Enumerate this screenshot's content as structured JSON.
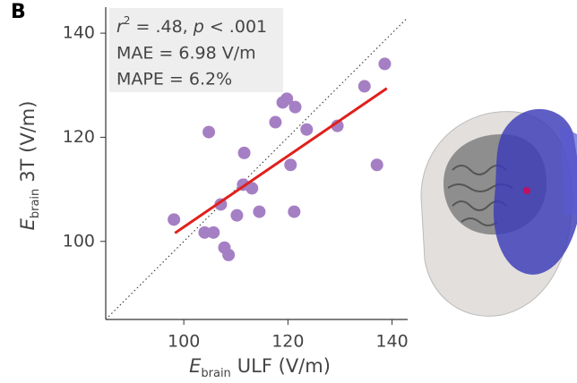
{
  "chart_data": {
    "type": "scatter",
    "panel_label": "B",
    "annotation": {
      "line1": [
        "r",
        "2",
        " = .48, ",
        "p",
        " < .001"
      ],
      "line2": "MAE = 6.98 V/m",
      "line3": "MAPE = 6.2%"
    },
    "x_label": {
      "symbol": "E",
      "subscript": "brain",
      "text": "ULF (V/m)"
    },
    "y_label": {
      "symbol": "E",
      "subscript": "brain",
      "text": "3T (V/m)"
    },
    "xlim": [
      85,
      143
    ],
    "ylim": [
      85,
      145
    ],
    "xticks": [
      100,
      120,
      140
    ],
    "yticks": [
      100,
      120,
      140
    ],
    "color": "#a57fc4",
    "identity_line": true,
    "fit_line": {
      "x": [
        98.3,
        139.0
      ],
      "y": [
        101.6,
        129.4
      ],
      "color": "#e0201b"
    },
    "x": [
      98.1,
      104.8,
      104.0,
      105.7,
      107.1,
      107.8,
      108.6,
      110.2,
      111.4,
      111.6,
      113.1,
      114.5,
      117.6,
      119.0,
      119.8,
      121.4,
      120.5,
      121.2,
      123.6,
      129.5,
      134.7,
      137.1,
      138.6
    ],
    "values": [
      104.2,
      121.0,
      101.7,
      101.7,
      107.1,
      98.8,
      97.4,
      105.0,
      110.9,
      117.0,
      110.2,
      105.7,
      122.9,
      126.7,
      127.4,
      125.8,
      114.7,
      105.7,
      121.5,
      122.2,
      129.8,
      114.7,
      134.1
    ]
  }
}
